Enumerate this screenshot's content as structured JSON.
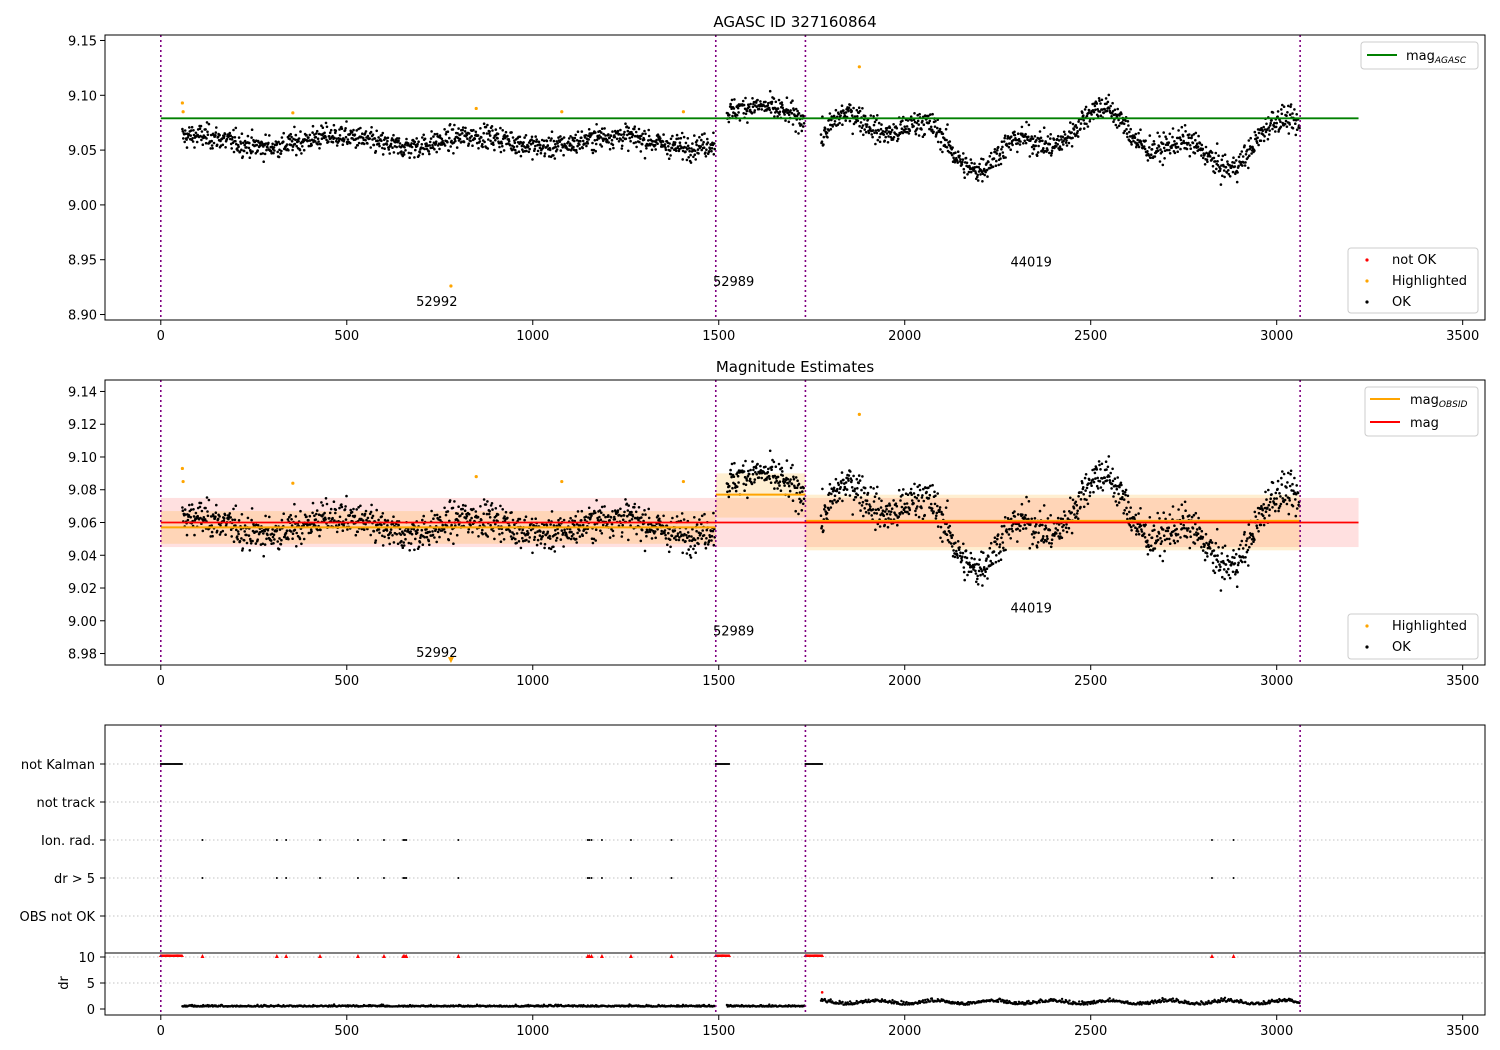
{
  "chart_data": [
    {
      "type": "scatter",
      "title": "AGASC ID 327160864",
      "xlim": [
        -150,
        3560
      ],
      "ylim": [
        8.895,
        9.155
      ],
      "xticks": [
        "0",
        "500",
        "1000",
        "1500",
        "2000",
        "2500",
        "3000",
        "3500"
      ],
      "yticks": [
        "9.15",
        "9.10",
        "9.05",
        "9.00",
        "8.95",
        "8.90"
      ],
      "grid": false,
      "legend_upper": {
        "placement": "top-right",
        "entries": [
          {
            "label": "mag",
            "subscript": "AGASC",
            "color": "#008000"
          }
        ]
      },
      "legend_lower": {
        "placement": "bottom-right",
        "entries": [
          {
            "label": "not OK",
            "color": "#ff0000"
          },
          {
            "label": "Highlighted",
            "color": "#ffa500"
          },
          {
            "label": "OK",
            "color": "#000000"
          }
        ]
      },
      "vlines": [
        0,
        1492,
        1733,
        3063
      ],
      "mag_agasc": {
        "value": 9.079,
        "xrange": [
          0,
          3220
        ],
        "color": "#008000"
      },
      "obsid_labels": [
        {
          "text": "52992",
          "x": 742,
          "y": 8.908
        },
        {
          "text": "52989",
          "x": 1540,
          "y": 8.926
        },
        {
          "text": "44019",
          "x": 2340,
          "y": 8.944
        }
      ],
      "segments": [
        {
          "x": [
            58,
            1490
          ],
          "level": 9.058,
          "amp": 0.005,
          "noise": 0.009
        },
        {
          "x": [
            1522,
            1730
          ],
          "level": 9.082,
          "amp": 0.008,
          "noise": 0.009
        },
        {
          "x": [
            1775,
            3062
          ],
          "level": 9.06,
          "amp": 0.022,
          "noise": 0.01
        }
      ],
      "highlighted": [
        [
          58,
          9.093
        ],
        [
          60,
          9.085
        ],
        [
          355,
          9.084
        ],
        [
          848,
          9.088
        ],
        [
          1078,
          9.085
        ],
        [
          1405,
          9.085
        ],
        [
          1878,
          9.126
        ],
        [
          780,
          8.926
        ]
      ]
    },
    {
      "type": "scatter",
      "title": "Magnitude Estimates",
      "xlim": [
        -150,
        3560
      ],
      "ylim": [
        8.973,
        9.147
      ],
      "xticks": [
        "0",
        "500",
        "1000",
        "1500",
        "2000",
        "2500",
        "3000",
        "3500"
      ],
      "yticks": [
        "9.14",
        "9.12",
        "9.10",
        "9.08",
        "9.06",
        "9.04",
        "9.02",
        "9.00",
        "8.98"
      ],
      "grid": false,
      "legend_upper": {
        "placement": "top-right",
        "entries": [
          {
            "label": "mag",
            "subscript": "OBSID",
            "color": "#ffa500"
          },
          {
            "label": "mag",
            "color": "#ff0000"
          }
        ]
      },
      "legend_lower": {
        "placement": "bottom-right",
        "entries": [
          {
            "label": "Highlighted",
            "color": "#ffa500"
          },
          {
            "label": "OK",
            "color": "#000000"
          }
        ]
      },
      "vlines": [
        0,
        1492,
        1733,
        3063
      ],
      "mag_overall": {
        "value": 9.06,
        "band": [
          9.045,
          9.075
        ],
        "xrange": [
          0,
          3220
        ]
      },
      "mag_obsid": [
        {
          "x": [
            0,
            1492
          ],
          "value": 9.057,
          "band": [
            9.047,
            9.067
          ]
        },
        {
          "x": [
            1492,
            1733
          ],
          "value": 9.077,
          "band": [
            9.063,
            9.09
          ]
        },
        {
          "x": [
            1733,
            3063
          ],
          "value": 9.061,
          "band": [
            9.043,
            9.077
          ]
        }
      ],
      "obsid_labels": [
        {
          "text": "52992",
          "x": 742,
          "y": 8.978
        },
        {
          "text": "52989",
          "x": 1540,
          "y": 8.991
        },
        {
          "text": "44019",
          "x": 2340,
          "y": 9.005
        }
      ],
      "highlighted": [
        [
          58,
          9.093
        ],
        [
          60,
          9.085
        ],
        [
          355,
          9.084
        ],
        [
          848,
          9.088
        ],
        [
          1078,
          9.085
        ],
        [
          1405,
          9.085
        ],
        [
          1878,
          9.126
        ]
      ],
      "highlighted_marker": {
        "x": 780,
        "y": 8.976
      }
    },
    {
      "type": "scatter",
      "xlim": [
        -150,
        3560
      ],
      "xticks": [
        "0",
        "500",
        "1000",
        "1500",
        "2000",
        "2500",
        "3000",
        "3500"
      ],
      "row_labels": [
        "not Kalman",
        "not track",
        "Ion. rad.",
        "dr > 5",
        "OBS not OK"
      ],
      "dr_yticks": [
        "10",
        "5",
        "0"
      ],
      "dr_ylabel": "dr",
      "vlines": [
        0,
        1492,
        1733,
        3063
      ],
      "not_kalman_ranges": [
        [
          0,
          58
        ],
        [
          1492,
          1528
        ],
        [
          1733,
          1780
        ]
      ],
      "flag_times": [
        112,
        312,
        337,
        428,
        530,
        600,
        652,
        656,
        660,
        800,
        1148,
        1152,
        1158,
        1186,
        1264,
        1373,
        2826,
        2884
      ]
    }
  ]
}
